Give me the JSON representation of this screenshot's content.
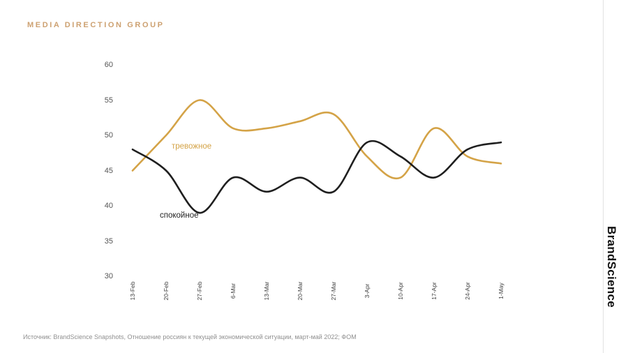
{
  "header": {
    "brand": "MEDIA DIRECTION GROUP"
  },
  "logo": {
    "text": "BrandScience"
  },
  "footer": {
    "source": "Источник: BrandScience Snapshots, Отношение россиян к текущей экономической ситуации, март-май 2022; ФОМ"
  },
  "colors": {
    "gold": "#D4A347",
    "ink": "#1F1F1F",
    "header_tan": "#CDA171",
    "axis_text": "#555555",
    "date_text": "#3D3D3D",
    "footer_gray": "#8F8F8F",
    "divider": "#E2E2E2",
    "background": "#FFFFFF"
  },
  "chart_data": {
    "type": "line",
    "title": "",
    "xlabel": "",
    "ylabel": "",
    "categories": [
      "13-Feb",
      "20-Feb",
      "27-Feb",
      "6-Mar",
      "13-Mar",
      "20-Mar",
      "27-Mar",
      "3-Apr",
      "10-Apr",
      "17-Apr",
      "24-Apr",
      "1-May"
    ],
    "series": [
      {
        "name": "тревожное",
        "color": "#D4A347",
        "values": [
          45,
          50,
          55,
          51,
          51,
          52,
          53,
          47,
          44,
          51,
          47,
          46
        ]
      },
      {
        "name": "спокойное",
        "color": "#1F1F1F",
        "values": [
          48,
          45,
          39,
          44,
          42,
          44,
          42,
          49,
          47,
          44,
          48,
          49
        ]
      }
    ],
    "ylim": [
      30,
      60
    ],
    "yticks": [
      60,
      55,
      50,
      45,
      40,
      35,
      30
    ],
    "grid": false,
    "smooth": true,
    "legend": "inline-labels"
  }
}
